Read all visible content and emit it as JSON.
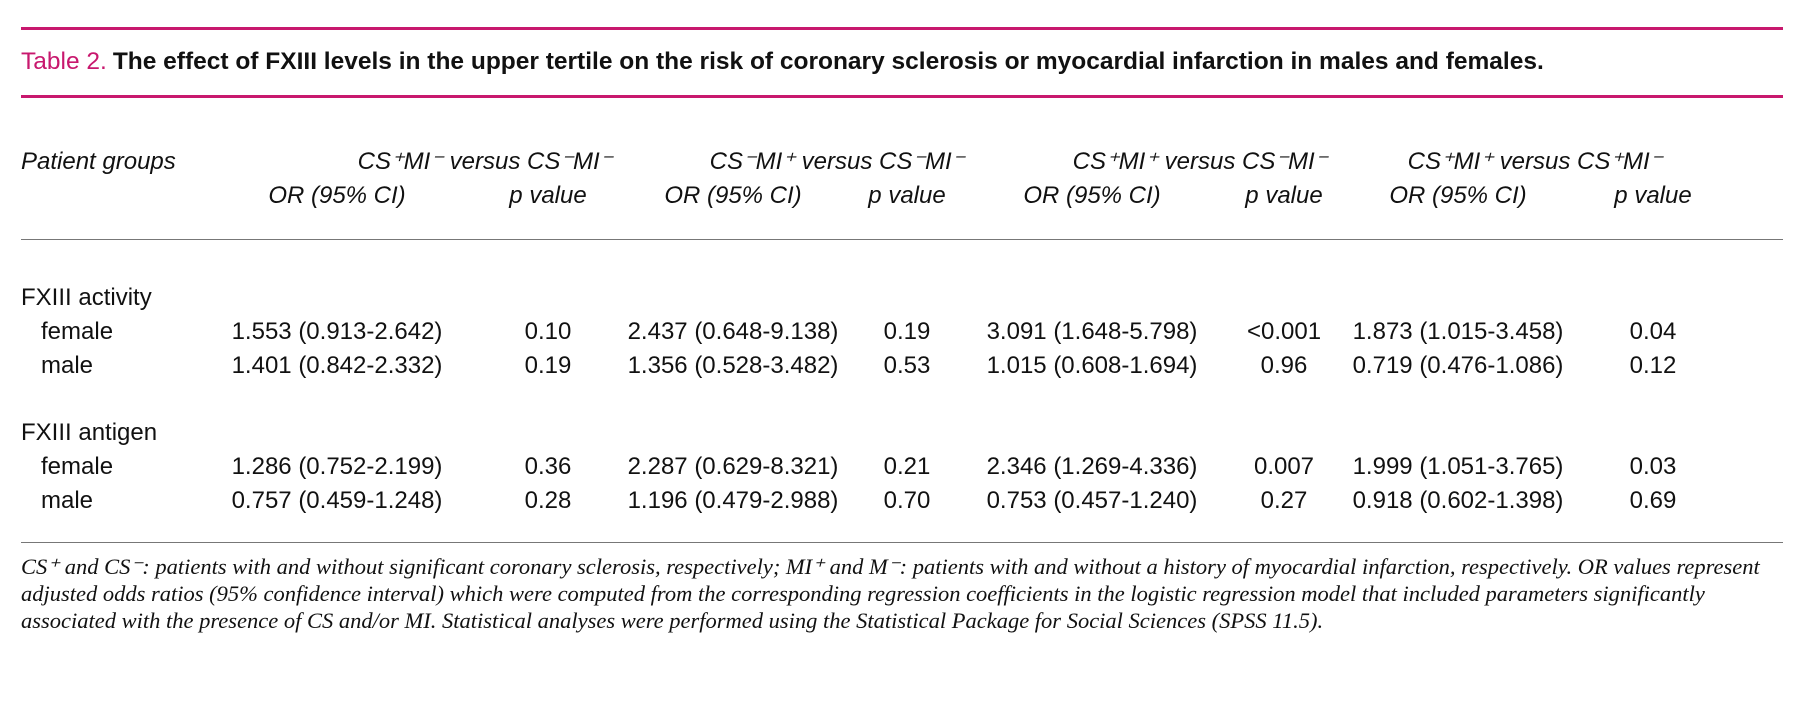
{
  "title": {
    "label": "Table 2.",
    "text": "The effect of FXIII levels in the upper tertile on the risk of coronary sclerosis or myocardial infarction in males and females."
  },
  "table": {
    "stub_header": "Patient groups",
    "comparisons": [
      {
        "label": "CS⁺MI⁻ versus CS⁻MI⁻",
        "columns": [
          "OR (95% CI)",
          "p value"
        ]
      },
      {
        "label": "CS⁻MI⁺ versus CS⁻MI⁻",
        "columns": [
          "OR (95% CI)",
          "p value"
        ]
      },
      {
        "label": "CS⁺MI⁺ versus CS⁻MI⁻",
        "columns": [
          "OR (95% CI)",
          "p value"
        ]
      },
      {
        "label": "CS⁺MI⁺ versus CS⁺MI⁻",
        "columns": [
          "OR (95% CI)",
          "p value"
        ]
      }
    ],
    "groups": [
      {
        "name": "FXIII activity",
        "rows": [
          {
            "label": "female",
            "cells": [
              "1.553 (0.913-2.642)",
              "0.10",
              "2.437 (0.648-9.138)",
              "0.19",
              "3.091 (1.648-5.798)",
              "<0.001",
              "1.873 (1.015-3.458)",
              "0.04"
            ]
          },
          {
            "label": "male",
            "cells": [
              "1.401 (0.842-2.332)",
              "0.19",
              "1.356 (0.528-3.482)",
              "0.53",
              "1.015 (0.608-1.694)",
              "0.96",
              "0.719 (0.476-1.086)",
              "0.12"
            ]
          }
        ]
      },
      {
        "name": "FXIII antigen",
        "rows": [
          {
            "label": "female",
            "cells": [
              "1.286 (0.752-2.199)",
              "0.36",
              "2.287 (0.629-8.321)",
              "0.21",
              "2.346 (1.269-4.336)",
              "0.007",
              "1.999 (1.051-3.765)",
              "0.03"
            ]
          },
          {
            "label": "male",
            "cells": [
              "0.757 (0.459-1.248)",
              "0.28",
              "1.196 (0.479-2.988)",
              "0.70",
              "0.753 (0.457-1.240)",
              "0.27",
              "0.918 (0.602-1.398)",
              "0.69"
            ]
          }
        ]
      }
    ]
  },
  "footnote": "CS⁺ and CS⁻: patients with and without significant coronary sclerosis, respectively; MI⁺ and M⁻: patients with and without a history of myocardial infarction, respectively. OR values represent adjusted odds ratios (95% confidence interval) which were computed from the corresponding regression coefficients in the logistic regression model that included parameters significantly associated with the presence of CS and/or MI. Statistical analyses were performed using the Statistical Package for Social Sciences (SPSS 11.5)."
}
